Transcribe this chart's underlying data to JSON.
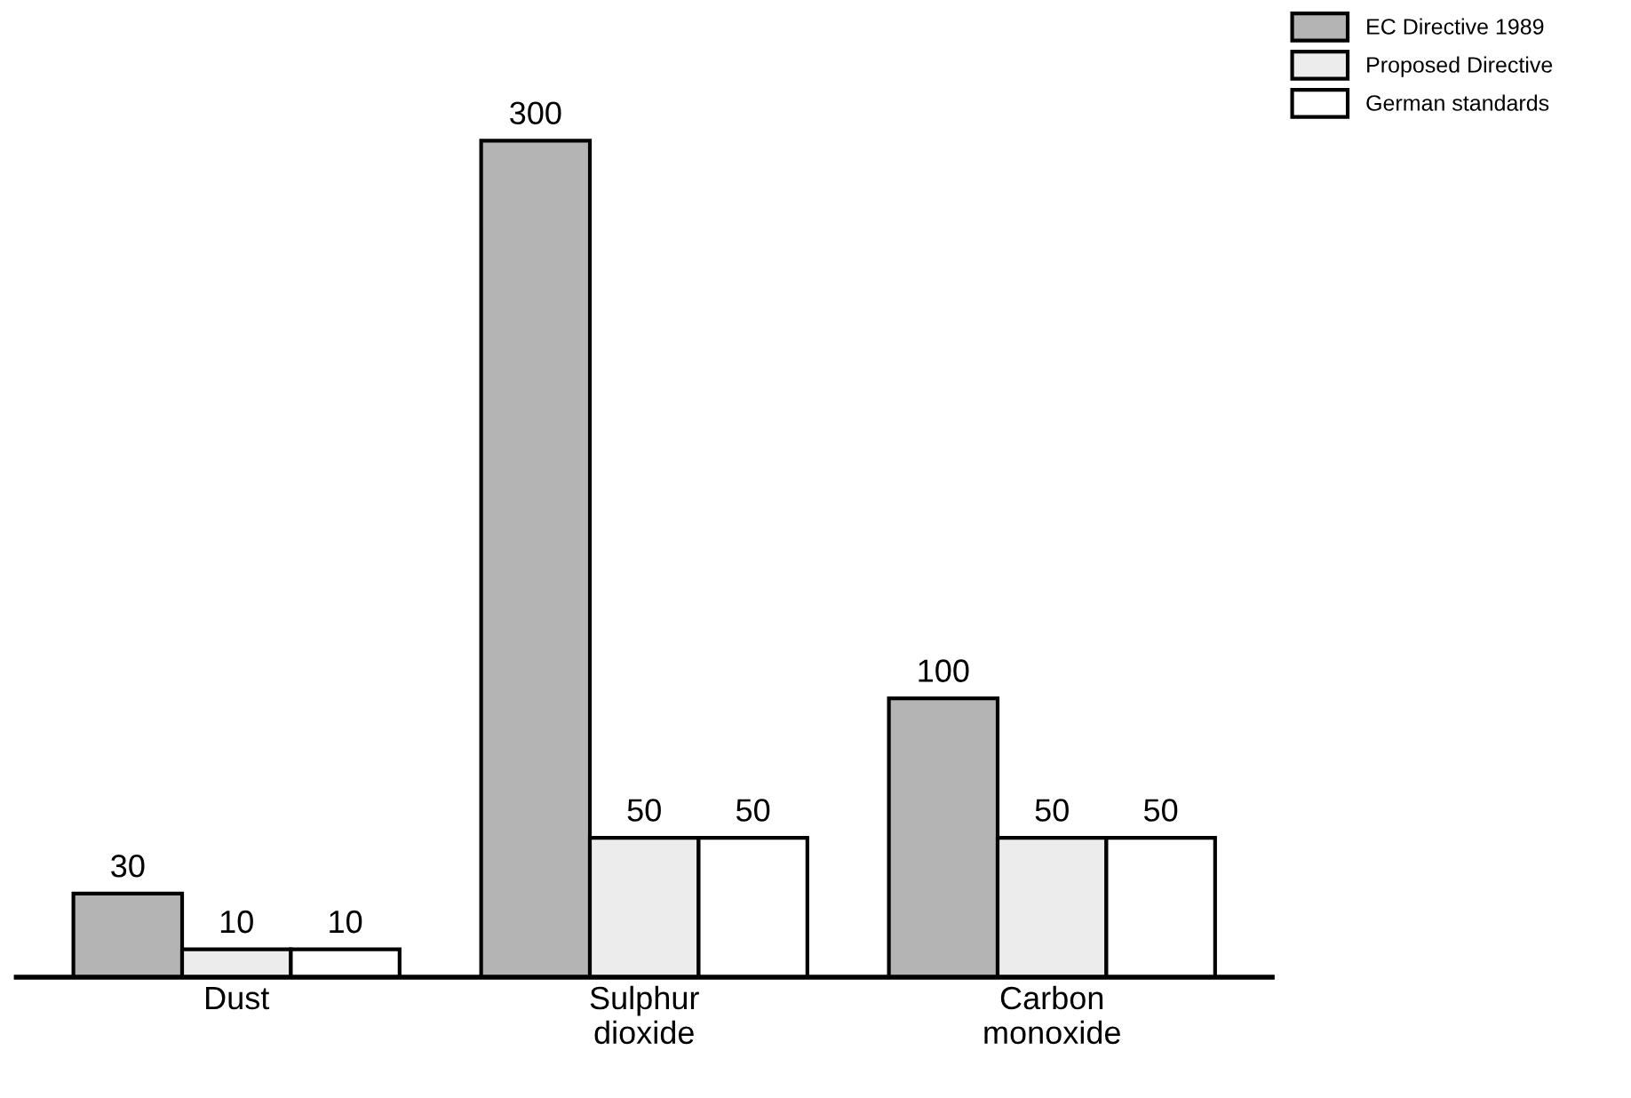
{
  "chart_data": {
    "type": "bar",
    "categories": [
      "Dust",
      "Sulphur\ndioxide",
      "Carbon\nmonoxide"
    ],
    "series": [
      {
        "name": "EC Directive 1989",
        "color": "#b4b4b4",
        "values": [
          30,
          300,
          100
        ]
      },
      {
        "name": "Proposed Directive",
        "color": "#ececec",
        "values": [
          10,
          50,
          50
        ]
      },
      {
        "name": "German standards",
        "color": "#ffffff",
        "values": [
          10,
          50,
          50
        ]
      }
    ],
    "tick_labels": "x",
    "data_labels": true,
    "legend": "top right",
    "grid": false
  }
}
